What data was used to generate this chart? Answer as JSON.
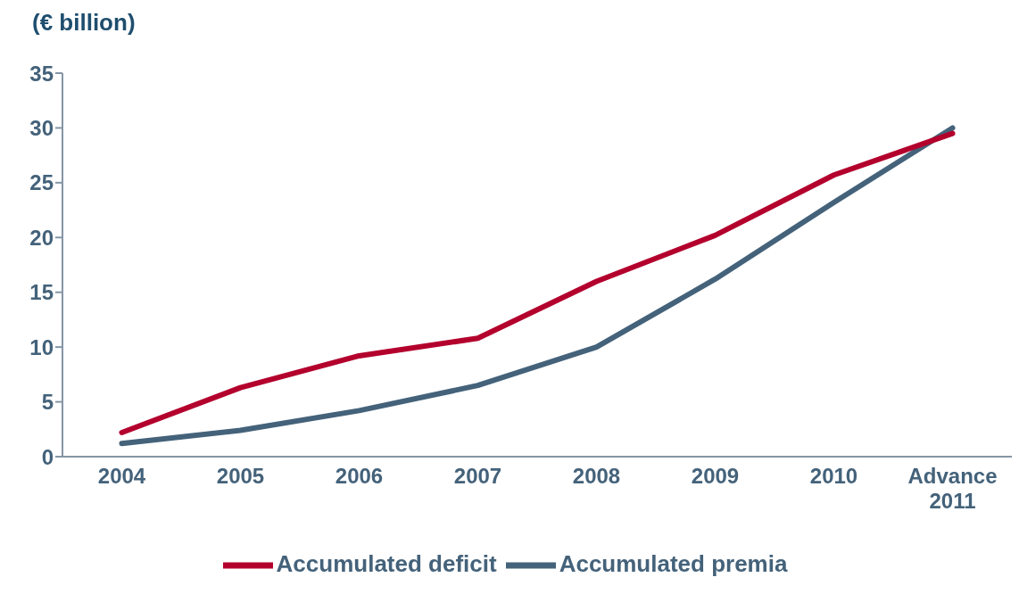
{
  "chart_data": {
    "type": "line",
    "ylabel": "(€ billion)",
    "categories": [
      "2004",
      "2005",
      "2006",
      "2007",
      "2008",
      "2009",
      "2010",
      "Advance\n2011"
    ],
    "series": [
      {
        "name": "Accumulated premia",
        "color": "#44627a",
        "values": [
          1.2,
          2.4,
          4.2,
          6.5,
          10.0,
          16.2,
          23.2,
          30.0
        ]
      },
      {
        "name": "Accumulated deficit",
        "color": "#b3002d",
        "values": [
          2.2,
          6.3,
          9.2,
          10.8,
          16.0,
          20.2,
          25.7,
          29.5
        ]
      }
    ],
    "ylim": [
      0,
      35
    ],
    "yticks": [
      0,
      5,
      10,
      15,
      20,
      25,
      30,
      35
    ],
    "grid": false,
    "legend": "bottom",
    "marker": "none",
    "line_style": "solid"
  }
}
